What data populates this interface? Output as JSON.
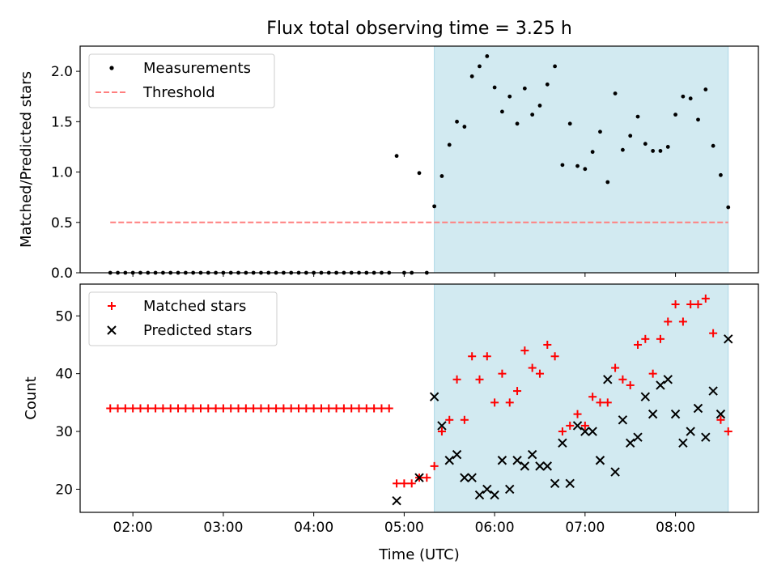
{
  "title": "Flux total observing time = 3.25 h",
  "xlabel": "Time (UTC)",
  "x_ticks": [
    "02:00",
    "03:00",
    "04:00",
    "05:00",
    "06:00",
    "07:00",
    "08:00"
  ],
  "colors": {
    "shade": "#add8e6",
    "measurement": "#000000",
    "threshold": "#ff7f7f",
    "matched": "#ff0000",
    "predicted": "#000000"
  },
  "chart_data": [
    {
      "type": "scatter",
      "ylabel": "Matched/Predicted stars",
      "xlim": [
        "01:25",
        "08:55"
      ],
      "ylim": [
        0,
        2.25
      ],
      "y_ticks": [
        "0.0",
        "0.5",
        "1.0",
        "1.5",
        "2.0"
      ],
      "shaded_region": [
        "05:20",
        "08:35"
      ],
      "threshold_line": {
        "y": 0.5,
        "x_range": [
          "01:45",
          "08:35"
        ]
      },
      "legend": {
        "placement": "top-left",
        "entries": [
          "Measurements",
          "Threshold"
        ]
      },
      "series": [
        {
          "name": "Measurements",
          "points": [
            [
              "01:45",
              0
            ],
            [
              "01:50",
              0
            ],
            [
              "01:55",
              0
            ],
            [
              "02:00",
              0
            ],
            [
              "02:05",
              0
            ],
            [
              "02:10",
              0
            ],
            [
              "02:15",
              0
            ],
            [
              "02:20",
              0
            ],
            [
              "02:25",
              0
            ],
            [
              "02:30",
              0
            ],
            [
              "02:35",
              0
            ],
            [
              "02:40",
              0
            ],
            [
              "02:45",
              0
            ],
            [
              "02:50",
              0
            ],
            [
              "02:55",
              0
            ],
            [
              "03:00",
              0
            ],
            [
              "03:05",
              0
            ],
            [
              "03:10",
              0
            ],
            [
              "03:15",
              0
            ],
            [
              "03:20",
              0
            ],
            [
              "03:25",
              0
            ],
            [
              "03:30",
              0
            ],
            [
              "03:35",
              0
            ],
            [
              "03:40",
              0
            ],
            [
              "03:45",
              0
            ],
            [
              "03:50",
              0
            ],
            [
              "03:55",
              0
            ],
            [
              "04:00",
              0
            ],
            [
              "04:05",
              0
            ],
            [
              "04:10",
              0
            ],
            [
              "04:15",
              0
            ],
            [
              "04:20",
              0
            ],
            [
              "04:25",
              0
            ],
            [
              "04:30",
              0
            ],
            [
              "04:35",
              0
            ],
            [
              "04:40",
              0
            ],
            [
              "04:45",
              0
            ],
            [
              "04:50",
              0
            ],
            [
              "04:55",
              1.16
            ],
            [
              "05:00",
              0
            ],
            [
              "05:05",
              0
            ],
            [
              "05:10",
              0.99
            ],
            [
              "05:15",
              0
            ],
            [
              "05:20",
              0.66
            ],
            [
              "05:25",
              0.96
            ],
            [
              "05:30",
              1.27
            ],
            [
              "05:35",
              1.5
            ],
            [
              "05:40",
              1.45
            ],
            [
              "05:45",
              1.95
            ],
            [
              "05:50",
              2.05
            ],
            [
              "05:55",
              2.15
            ],
            [
              "06:00",
              1.84
            ],
            [
              "06:05",
              1.6
            ],
            [
              "06:10",
              1.75
            ],
            [
              "06:15",
              1.48
            ],
            [
              "06:20",
              1.83
            ],
            [
              "06:25",
              1.57
            ],
            [
              "06:30",
              1.66
            ],
            [
              "06:35",
              1.87
            ],
            [
              "06:40",
              2.05
            ],
            [
              "06:45",
              1.07
            ],
            [
              "06:50",
              1.48
            ],
            [
              "06:55",
              1.06
            ],
            [
              "07:00",
              1.03
            ],
            [
              "07:05",
              1.2
            ],
            [
              "07:10",
              1.4
            ],
            [
              "07:15",
              0.9
            ],
            [
              "07:20",
              1.78
            ],
            [
              "07:25",
              1.22
            ],
            [
              "07:30",
              1.36
            ],
            [
              "07:35",
              1.55
            ],
            [
              "07:40",
              1.28
            ],
            [
              "07:45",
              1.21
            ],
            [
              "07:50",
              1.21
            ],
            [
              "07:55",
              1.25
            ],
            [
              "08:00",
              1.57
            ],
            [
              "08:05",
              1.75
            ],
            [
              "08:10",
              1.73
            ],
            [
              "08:15",
              1.52
            ],
            [
              "08:20",
              1.82
            ],
            [
              "08:25",
              1.26
            ],
            [
              "08:30",
              0.97
            ],
            [
              "08:35",
              0.65
            ]
          ]
        }
      ]
    },
    {
      "type": "scatter",
      "ylabel": "Count",
      "xlim": [
        "01:25",
        "08:55"
      ],
      "ylim": [
        16,
        55.5
      ],
      "y_ticks": [
        "20",
        "30",
        "40",
        "50"
      ],
      "shaded_region": [
        "05:20",
        "08:35"
      ],
      "legend": {
        "placement": "top-left",
        "entries": [
          "Matched stars",
          "Predicted stars"
        ]
      },
      "series": [
        {
          "name": "Matched stars",
          "marker": "+",
          "points": [
            [
              "01:45",
              34
            ],
            [
              "01:50",
              34
            ],
            [
              "01:55",
              34
            ],
            [
              "02:00",
              34
            ],
            [
              "02:05",
              34
            ],
            [
              "02:10",
              34
            ],
            [
              "02:15",
              34
            ],
            [
              "02:20",
              34
            ],
            [
              "02:25",
              34
            ],
            [
              "02:30",
              34
            ],
            [
              "02:35",
              34
            ],
            [
              "02:40",
              34
            ],
            [
              "02:45",
              34
            ],
            [
              "02:50",
              34
            ],
            [
              "02:55",
              34
            ],
            [
              "03:00",
              34
            ],
            [
              "03:05",
              34
            ],
            [
              "03:10",
              34
            ],
            [
              "03:15",
              34
            ],
            [
              "03:20",
              34
            ],
            [
              "03:25",
              34
            ],
            [
              "03:30",
              34
            ],
            [
              "03:35",
              34
            ],
            [
              "03:40",
              34
            ],
            [
              "03:45",
              34
            ],
            [
              "03:50",
              34
            ],
            [
              "03:55",
              34
            ],
            [
              "04:00",
              34
            ],
            [
              "04:05",
              34
            ],
            [
              "04:10",
              34
            ],
            [
              "04:15",
              34
            ],
            [
              "04:20",
              34
            ],
            [
              "04:25",
              34
            ],
            [
              "04:30",
              34
            ],
            [
              "04:35",
              34
            ],
            [
              "04:40",
              34
            ],
            [
              "04:45",
              34
            ],
            [
              "04:50",
              34
            ],
            [
              "04:55",
              21
            ],
            [
              "05:00",
              21
            ],
            [
              "05:05",
              21
            ],
            [
              "05:10",
              22
            ],
            [
              "05:15",
              22
            ],
            [
              "05:20",
              24
            ],
            [
              "05:25",
              30
            ],
            [
              "05:30",
              32
            ],
            [
              "05:35",
              39
            ],
            [
              "05:40",
              32
            ],
            [
              "05:45",
              43
            ],
            [
              "05:50",
              39
            ],
            [
              "05:55",
              43
            ],
            [
              "06:00",
              35
            ],
            [
              "06:05",
              40
            ],
            [
              "06:10",
              35
            ],
            [
              "06:15",
              37
            ],
            [
              "06:20",
              44
            ],
            [
              "06:25",
              41
            ],
            [
              "06:30",
              40
            ],
            [
              "06:35",
              45
            ],
            [
              "06:40",
              43
            ],
            [
              "06:45",
              30
            ],
            [
              "06:50",
              31
            ],
            [
              "06:55",
              33
            ],
            [
              "07:00",
              31
            ],
            [
              "07:05",
              36
            ],
            [
              "07:10",
              35
            ],
            [
              "07:15",
              35
            ],
            [
              "07:20",
              41
            ],
            [
              "07:25",
              39
            ],
            [
              "07:30",
              38
            ],
            [
              "07:35",
              45
            ],
            [
              "07:40",
              46
            ],
            [
              "07:45",
              40
            ],
            [
              "07:50",
              46
            ],
            [
              "07:55",
              49
            ],
            [
              "08:00",
              52
            ],
            [
              "08:05",
              49
            ],
            [
              "08:10",
              52
            ],
            [
              "08:15",
              52
            ],
            [
              "08:20",
              53
            ],
            [
              "08:25",
              47
            ],
            [
              "08:30",
              32
            ],
            [
              "08:35",
              30
            ]
          ]
        },
        {
          "name": "Predicted stars",
          "marker": "x",
          "points": [
            [
              "04:55",
              18
            ],
            [
              "05:10",
              22
            ],
            [
              "05:20",
              36
            ],
            [
              "05:25",
              31
            ],
            [
              "05:30",
              25
            ],
            [
              "05:35",
              26
            ],
            [
              "05:40",
              22
            ],
            [
              "05:45",
              22
            ],
            [
              "05:50",
              19
            ],
            [
              "05:55",
              20
            ],
            [
              "06:00",
              19
            ],
            [
              "06:05",
              25
            ],
            [
              "06:10",
              20
            ],
            [
              "06:15",
              25
            ],
            [
              "06:20",
              24
            ],
            [
              "06:25",
              26
            ],
            [
              "06:30",
              24
            ],
            [
              "06:35",
              24
            ],
            [
              "06:40",
              21
            ],
            [
              "06:45",
              28
            ],
            [
              "06:50",
              21
            ],
            [
              "06:55",
              31
            ],
            [
              "07:00",
              30
            ],
            [
              "07:05",
              30
            ],
            [
              "07:10",
              25
            ],
            [
              "07:15",
              39
            ],
            [
              "07:20",
              23
            ],
            [
              "07:25",
              32
            ],
            [
              "07:30",
              28
            ],
            [
              "07:35",
              29
            ],
            [
              "07:40",
              36
            ],
            [
              "07:45",
              33
            ],
            [
              "07:50",
              38
            ],
            [
              "07:55",
              39
            ],
            [
              "08:00",
              33
            ],
            [
              "08:05",
              28
            ],
            [
              "08:10",
              30
            ],
            [
              "08:15",
              34
            ],
            [
              "08:20",
              29
            ],
            [
              "08:25",
              37
            ],
            [
              "08:30",
              33
            ],
            [
              "08:35",
              46
            ]
          ]
        }
      ]
    }
  ]
}
